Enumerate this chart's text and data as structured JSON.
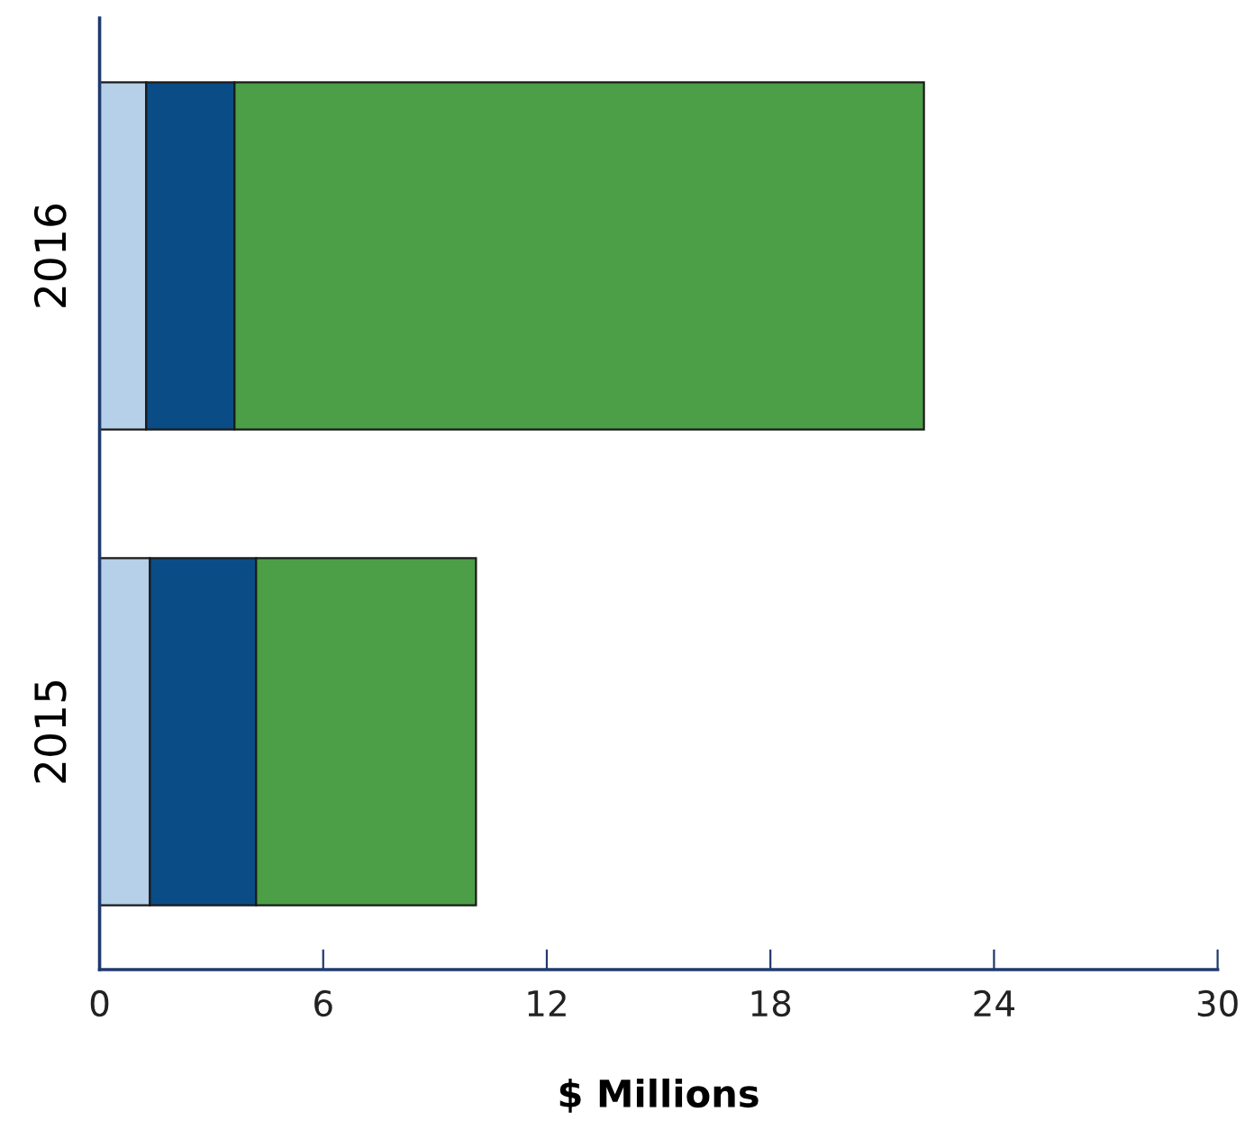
{
  "chart_data": {
    "type": "bar",
    "orientation": "horizontal",
    "stacked": true,
    "xlabel": "$ Millions",
    "categories": [
      "2016",
      "2015"
    ],
    "series": [
      {
        "color": "#b5d0e8",
        "values": [
          1.25,
          1.35
        ]
      },
      {
        "color": "#0a4d86",
        "values": [
          2.37,
          2.85
        ]
      },
      {
        "color": "#4c9f47",
        "values": [
          18.5,
          5.9
        ]
      }
    ],
    "xlim": [
      0,
      30
    ],
    "xticks": [
      0,
      6,
      12,
      18,
      24,
      30
    ],
    "grid": false,
    "legend": false
  }
}
